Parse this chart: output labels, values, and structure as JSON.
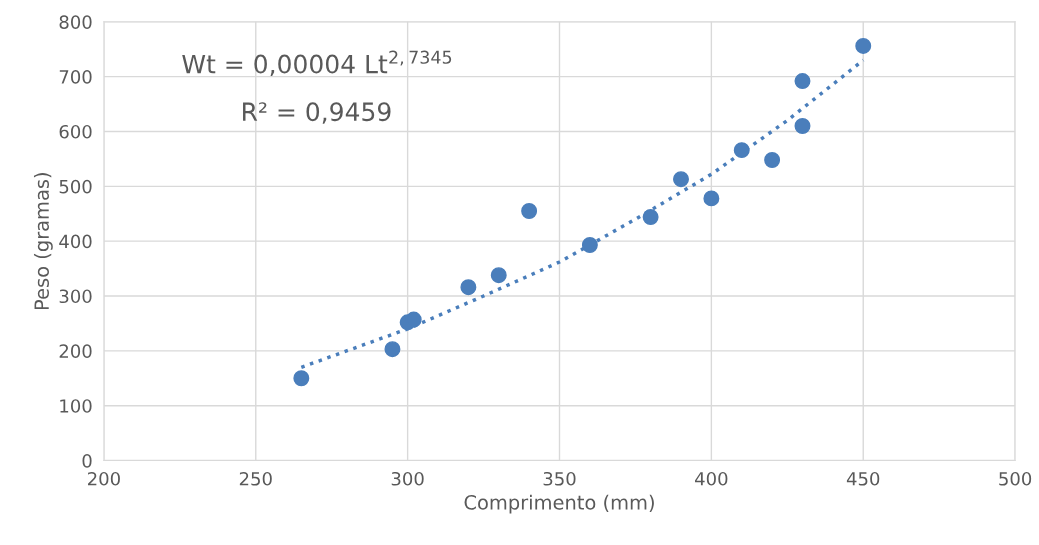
{
  "chart_data": {
    "type": "scatter",
    "xlabel": "Comprimento (mm)",
    "ylabel": "Peso (gramas)",
    "annotations": [
      "Wt = 0,00004 Lt$^{2,7345}$",
      "R² = 0,9459"
    ],
    "series": [
      {
        "color": "#4a7ebb",
        "marker": "circle",
        "x": [
          265,
          295,
          300,
          302,
          320,
          330,
          340,
          360,
          380,
          390,
          400,
          410,
          420,
          430,
          430,
          450
        ],
        "values": [
          150,
          203,
          252,
          257,
          316,
          338,
          455,
          393,
          444,
          513,
          478,
          566,
          548,
          692,
          610,
          756
        ]
      },
      {
        "type": "line",
        "color": "#4a7ebb",
        "line_style": "dotted",
        "marker": "none",
        "x": [
          265,
          300,
          325,
          350,
          375,
          400,
          425,
          450
        ],
        "values": [
          170,
          240,
          300,
          362,
          440,
          522,
          620,
          730
        ]
      }
    ],
    "xlim": [
      200,
      500
    ],
    "xticks": [
      200,
      250,
      300,
      350,
      400,
      450,
      500
    ],
    "ylim": [
      0,
      800
    ],
    "yticks": [
      0,
      100,
      200,
      300,
      400,
      500,
      600,
      700,
      800
    ],
    "grid": true
  }
}
